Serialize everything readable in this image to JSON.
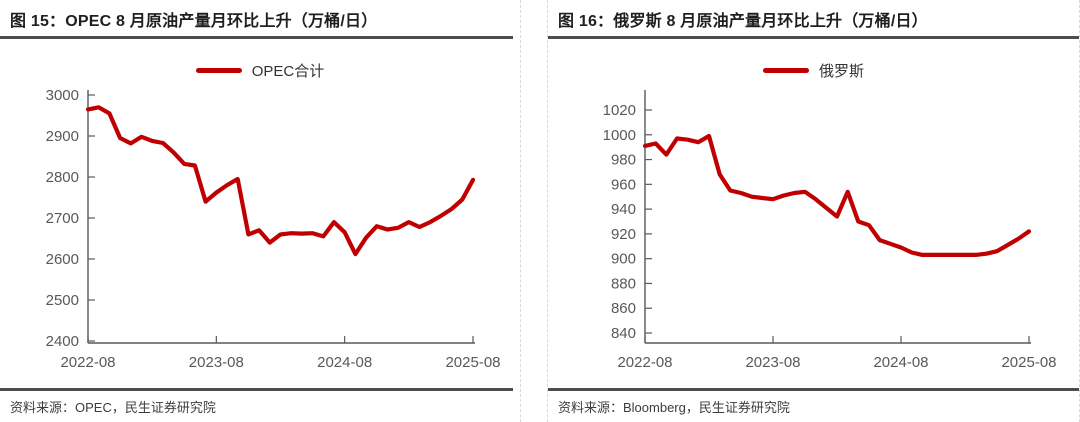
{
  "style": {
    "line_color": "#c00000",
    "axis_color": "#595959",
    "title_color": "#1f1f1f",
    "rule_color": "#4d4d4d",
    "source_color": "#3d3d3d"
  },
  "panels": [
    {
      "title": "图 15：OPEC 8 月原油产量月环比上升（万桶/日）",
      "legend": "OPEC合计",
      "source": "资料来源：OPEC，民生证券研究院"
    },
    {
      "title": "图 16：俄罗斯 8 月原油产量月环比上升（万桶/日）",
      "legend": "俄罗斯",
      "source": "资料来源：Bloomberg，民生证券研究院"
    }
  ],
  "chart_data": [
    {
      "type": "line",
      "title": "图 15：OPEC 8 月原油产量月环比上升（万桶/日）",
      "ylabel": "万桶/日",
      "xlabel": "",
      "grid": false,
      "legend_position": "top",
      "ylim": [
        2400,
        3000
      ],
      "y_ticks": [
        2400,
        2500,
        2600,
        2700,
        2800,
        2900,
        3000
      ],
      "x_tick_labels": [
        "2022-08",
        "2023-08",
        "2024-08",
        "2025-08"
      ],
      "x": [
        "2022-08",
        "2022-09",
        "2022-10",
        "2022-11",
        "2022-12",
        "2023-01",
        "2023-02",
        "2023-03",
        "2023-04",
        "2023-05",
        "2023-06",
        "2023-07",
        "2023-08",
        "2023-09",
        "2023-10",
        "2023-11",
        "2023-12",
        "2024-01",
        "2024-02",
        "2024-03",
        "2024-04",
        "2024-05",
        "2024-06",
        "2024-07",
        "2024-08",
        "2024-09",
        "2024-10",
        "2024-11",
        "2024-12",
        "2025-01",
        "2025-02",
        "2025-03",
        "2025-04",
        "2025-05",
        "2025-06",
        "2025-07",
        "2025-08"
      ],
      "series": [
        {
          "name": "OPEC合计",
          "color": "#c00000",
          "values": [
            2965,
            2970,
            2955,
            2895,
            2882,
            2898,
            2888,
            2883,
            2860,
            2832,
            2828,
            2740,
            2762,
            2780,
            2795,
            2660,
            2670,
            2640,
            2660,
            2663,
            2662,
            2663,
            2655,
            2690,
            2665,
            2612,
            2652,
            2680,
            2672,
            2676,
            2690,
            2678,
            2690,
            2705,
            2722,
            2745,
            2793
          ]
        }
      ]
    },
    {
      "type": "line",
      "title": "图 16：俄罗斯 8 月原油产量月环比上升（万桶/日）",
      "ylabel": "万桶/日",
      "xlabel": "",
      "grid": false,
      "legend_position": "top",
      "ylim": [
        840,
        1020
      ],
      "y_ticks": [
        840,
        860,
        880,
        900,
        920,
        940,
        960,
        980,
        1000,
        1020
      ],
      "x_tick_labels": [
        "2022-08",
        "2023-08",
        "2024-08",
        "2025-08"
      ],
      "x": [
        "2022-08",
        "2022-09",
        "2022-10",
        "2022-11",
        "2022-12",
        "2023-01",
        "2023-02",
        "2023-03",
        "2023-04",
        "2023-05",
        "2023-06",
        "2023-07",
        "2023-08",
        "2023-09",
        "2023-10",
        "2023-11",
        "2023-12",
        "2024-01",
        "2024-02",
        "2024-03",
        "2024-04",
        "2024-05",
        "2024-06",
        "2024-07",
        "2024-08",
        "2024-09",
        "2024-10",
        "2024-11",
        "2024-12",
        "2025-01",
        "2025-02",
        "2025-03",
        "2025-04",
        "2025-05",
        "2025-06",
        "2025-07",
        "2025-08"
      ],
      "series": [
        {
          "name": "俄罗斯",
          "color": "#c00000",
          "values": [
            991,
            993,
            984,
            997,
            996,
            994,
            999,
            968,
            955,
            953,
            950,
            949,
            948,
            951,
            953,
            954,
            948,
            941,
            934,
            954,
            930,
            927,
            915,
            912,
            909,
            905,
            903,
            903,
            903,
            903,
            903,
            903,
            904,
            906,
            911,
            916,
            922
          ]
        }
      ]
    }
  ]
}
